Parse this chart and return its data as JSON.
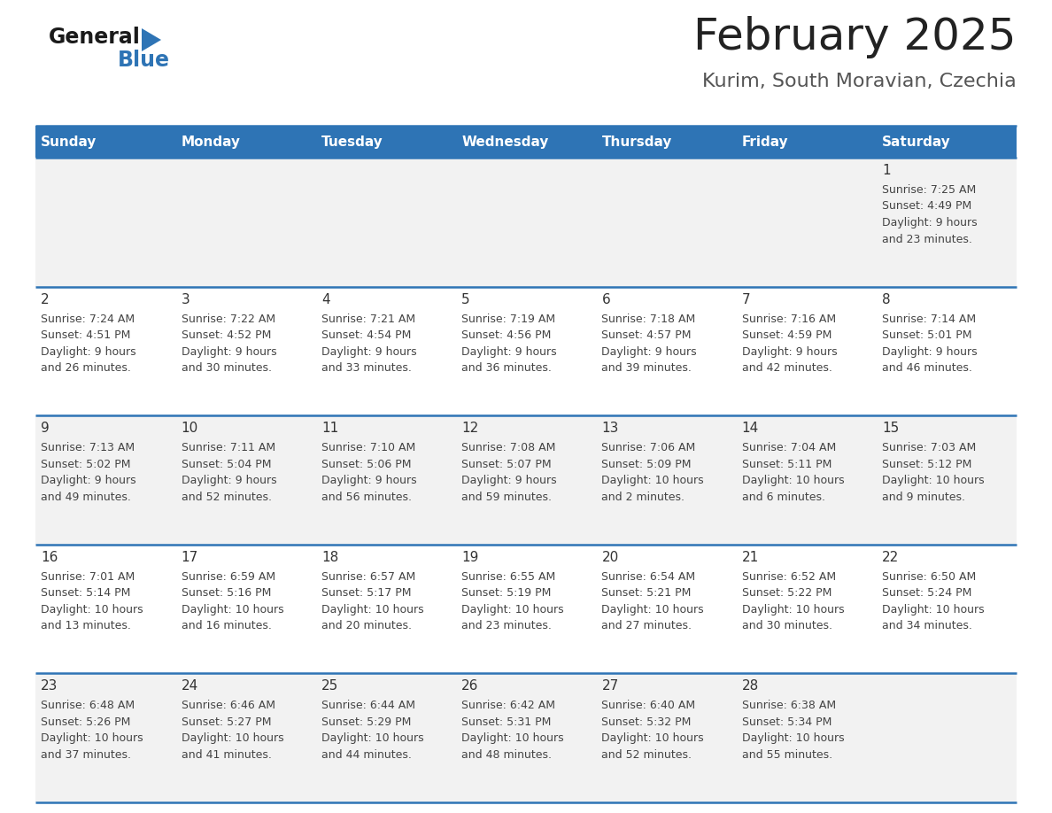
{
  "title": "February 2025",
  "subtitle": "Kurim, South Moravian, Czechia",
  "days_of_week": [
    "Sunday",
    "Monday",
    "Tuesday",
    "Wednesday",
    "Thursday",
    "Friday",
    "Saturday"
  ],
  "header_bg": "#2E74B5",
  "header_text": "#FFFFFF",
  "cell_bg_odd": "#F2F2F2",
  "cell_bg_even": "#FFFFFF",
  "border_color": "#2E74B5",
  "day_num_color": "#333333",
  "cell_text_color": "#444444",
  "title_color": "#222222",
  "subtitle_color": "#555555",
  "logo_black": "#1a1a1a",
  "logo_blue": "#2E74B5",
  "calendar_data": [
    [
      {
        "day": 0,
        "info": ""
      },
      {
        "day": 0,
        "info": ""
      },
      {
        "day": 0,
        "info": ""
      },
      {
        "day": 0,
        "info": ""
      },
      {
        "day": 0,
        "info": ""
      },
      {
        "day": 0,
        "info": ""
      },
      {
        "day": 1,
        "info": "Sunrise: 7:25 AM\nSunset: 4:49 PM\nDaylight: 9 hours\nand 23 minutes."
      }
    ],
    [
      {
        "day": 2,
        "info": "Sunrise: 7:24 AM\nSunset: 4:51 PM\nDaylight: 9 hours\nand 26 minutes."
      },
      {
        "day": 3,
        "info": "Sunrise: 7:22 AM\nSunset: 4:52 PM\nDaylight: 9 hours\nand 30 minutes."
      },
      {
        "day": 4,
        "info": "Sunrise: 7:21 AM\nSunset: 4:54 PM\nDaylight: 9 hours\nand 33 minutes."
      },
      {
        "day": 5,
        "info": "Sunrise: 7:19 AM\nSunset: 4:56 PM\nDaylight: 9 hours\nand 36 minutes."
      },
      {
        "day": 6,
        "info": "Sunrise: 7:18 AM\nSunset: 4:57 PM\nDaylight: 9 hours\nand 39 minutes."
      },
      {
        "day": 7,
        "info": "Sunrise: 7:16 AM\nSunset: 4:59 PM\nDaylight: 9 hours\nand 42 minutes."
      },
      {
        "day": 8,
        "info": "Sunrise: 7:14 AM\nSunset: 5:01 PM\nDaylight: 9 hours\nand 46 minutes."
      }
    ],
    [
      {
        "day": 9,
        "info": "Sunrise: 7:13 AM\nSunset: 5:02 PM\nDaylight: 9 hours\nand 49 minutes."
      },
      {
        "day": 10,
        "info": "Sunrise: 7:11 AM\nSunset: 5:04 PM\nDaylight: 9 hours\nand 52 minutes."
      },
      {
        "day": 11,
        "info": "Sunrise: 7:10 AM\nSunset: 5:06 PM\nDaylight: 9 hours\nand 56 minutes."
      },
      {
        "day": 12,
        "info": "Sunrise: 7:08 AM\nSunset: 5:07 PM\nDaylight: 9 hours\nand 59 minutes."
      },
      {
        "day": 13,
        "info": "Sunrise: 7:06 AM\nSunset: 5:09 PM\nDaylight: 10 hours\nand 2 minutes."
      },
      {
        "day": 14,
        "info": "Sunrise: 7:04 AM\nSunset: 5:11 PM\nDaylight: 10 hours\nand 6 minutes."
      },
      {
        "day": 15,
        "info": "Sunrise: 7:03 AM\nSunset: 5:12 PM\nDaylight: 10 hours\nand 9 minutes."
      }
    ],
    [
      {
        "day": 16,
        "info": "Sunrise: 7:01 AM\nSunset: 5:14 PM\nDaylight: 10 hours\nand 13 minutes."
      },
      {
        "day": 17,
        "info": "Sunrise: 6:59 AM\nSunset: 5:16 PM\nDaylight: 10 hours\nand 16 minutes."
      },
      {
        "day": 18,
        "info": "Sunrise: 6:57 AM\nSunset: 5:17 PM\nDaylight: 10 hours\nand 20 minutes."
      },
      {
        "day": 19,
        "info": "Sunrise: 6:55 AM\nSunset: 5:19 PM\nDaylight: 10 hours\nand 23 minutes."
      },
      {
        "day": 20,
        "info": "Sunrise: 6:54 AM\nSunset: 5:21 PM\nDaylight: 10 hours\nand 27 minutes."
      },
      {
        "day": 21,
        "info": "Sunrise: 6:52 AM\nSunset: 5:22 PM\nDaylight: 10 hours\nand 30 minutes."
      },
      {
        "day": 22,
        "info": "Sunrise: 6:50 AM\nSunset: 5:24 PM\nDaylight: 10 hours\nand 34 minutes."
      }
    ],
    [
      {
        "day": 23,
        "info": "Sunrise: 6:48 AM\nSunset: 5:26 PM\nDaylight: 10 hours\nand 37 minutes."
      },
      {
        "day": 24,
        "info": "Sunrise: 6:46 AM\nSunset: 5:27 PM\nDaylight: 10 hours\nand 41 minutes."
      },
      {
        "day": 25,
        "info": "Sunrise: 6:44 AM\nSunset: 5:29 PM\nDaylight: 10 hours\nand 44 minutes."
      },
      {
        "day": 26,
        "info": "Sunrise: 6:42 AM\nSunset: 5:31 PM\nDaylight: 10 hours\nand 48 minutes."
      },
      {
        "day": 27,
        "info": "Sunrise: 6:40 AM\nSunset: 5:32 PM\nDaylight: 10 hours\nand 52 minutes."
      },
      {
        "day": 28,
        "info": "Sunrise: 6:38 AM\nSunset: 5:34 PM\nDaylight: 10 hours\nand 55 minutes."
      },
      {
        "day": 0,
        "info": ""
      }
    ]
  ]
}
